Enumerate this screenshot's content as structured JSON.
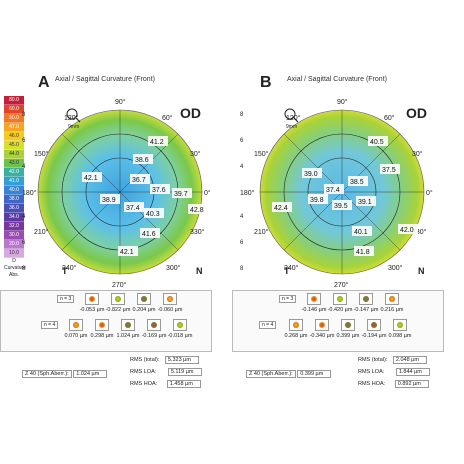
{
  "panels": [
    {
      "letter": "A",
      "title": "Axial / Sagittal Curvature (Front)",
      "eye": "OD",
      "zoom": "9mm",
      "scale": [
        "80.0",
        "60.0",
        "50.0",
        "47.0",
        "46.0",
        "45.0",
        "44.0",
        "43.0",
        "42.0",
        "41.0",
        "40.0",
        "38.0",
        "36.0",
        "34.0",
        "32.0",
        "30.0",
        "20.0",
        "10.0"
      ],
      "scale_footer": [
        "D",
        "Curvature",
        "Abs."
      ],
      "map_values": [
        "41.2",
        "38.6",
        "42.1",
        "36.7",
        "37.6",
        "38.9",
        "37.4",
        "40.3",
        "39.7",
        "42.8",
        "41.6",
        "42.1"
      ],
      "map_ticks": {
        "top": "90°",
        "left": "180°",
        "right": "0°",
        "bottom": "270°",
        "ul": "120°",
        "ur": "60°",
        "ll": "240°",
        "lr": "300°",
        "l1": "150°",
        "l2": "210°",
        "r1": "30°",
        "r2": "330°"
      },
      "map_side": {
        "T": "T",
        "N": "N"
      },
      "axis_left": [
        "8",
        "6",
        "4",
        "2",
        "0",
        "2",
        "4",
        "6",
        "8"
      ],
      "axis_bottom": [
        "8",
        "4",
        "0",
        "4",
        "8"
      ],
      "n3_label": "n = 3",
      "n4_label": "n = 4",
      "zern_row3": [
        "-0.053 µm",
        "-0.822 µm",
        "0.204 µm",
        "-0.060 µm"
      ],
      "zern_row4": [
        "0.070 µm",
        "0.298 µm",
        "1.024 µm",
        "-0.169 µm",
        "-0.018 µm"
      ],
      "z40_label": "Z 40 (Sph.Aberr.):",
      "z40_value": "1.024 µm",
      "rms_total_label": "RMS (total):",
      "rms_total": "5.323 µm",
      "rms_loa_label": "RMS LOA:",
      "rms_loa": "5.119 µm",
      "rms_hoa_label": "RMS HOA:",
      "rms_hoa": "1.458 µm"
    },
    {
      "letter": "B",
      "title": "Axial / Sagittal Curvature (Front)",
      "eye": "OD",
      "zoom": "9mm",
      "map_values": [
        "40.5",
        "39.0",
        "37.5",
        "38.5",
        "37.4",
        "42.4",
        "39.8",
        "39.5",
        "39.1",
        "40.1",
        "42.0",
        "41.8"
      ],
      "map_ticks": {
        "top": "90°",
        "left": "180°",
        "right": "0°",
        "bottom": "270°",
        "ul": "120°",
        "ur": "60°",
        "ll": "240°",
        "lr": "300°",
        "l1": "150°",
        "l2": "210°",
        "r1": "30°",
        "r2": "330°"
      },
      "map_side": {
        "T": "T",
        "N": "N"
      },
      "axis_left": [
        "8",
        "6",
        "4",
        "2",
        "0",
        "2",
        "4",
        "6",
        "8"
      ],
      "axis_bottom": [
        "8",
        "4",
        "0",
        "4",
        "8"
      ],
      "n3_label": "n = 3",
      "n4_label": "n = 4",
      "zern_row3": [
        "-0.146 µm",
        "-0.420 µm",
        "-0.147 µm",
        "0.216 µm"
      ],
      "zern_row4": [
        "0.268 µm",
        "-0.340 µm",
        "0.399 µm",
        "-0.194 µm",
        "0.098 µm"
      ],
      "z40_label": "Z 40 (Sph.Aberr.):",
      "z40_value": "0.399 µm",
      "rms_total_label": "RMS (total):",
      "rms_total": "2.048 µm",
      "rms_loa_label": "RMS LOA:",
      "rms_loa": "1.844 µm",
      "rms_hoa_label": "RMS HOA:",
      "rms_hoa": "0.892 µm"
    }
  ]
}
